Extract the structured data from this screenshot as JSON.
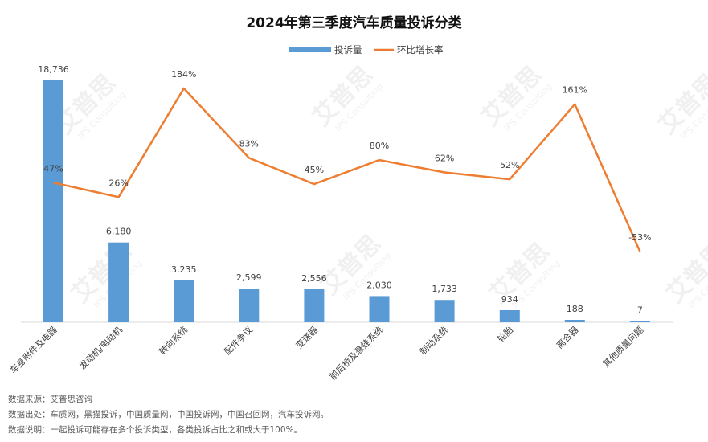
{
  "chart_data": {
    "type": "bar",
    "title": "2024年第三季度汽车质量投诉分类",
    "categories": [
      "车身附件及电器",
      "发动机/电动机",
      "转向系统",
      "配件争议",
      "变速器",
      "前后桥及悬挂系统",
      "制动系统",
      "轮胎",
      "离合器",
      "其他质量问题"
    ],
    "series": [
      {
        "name": "投诉量",
        "type": "bar",
        "color": "#5b9bd5",
        "values": [
          18736,
          6180,
          3235,
          2599,
          2556,
          2030,
          1733,
          934,
          188,
          7
        ],
        "labels": [
          "18,736",
          "6,180",
          "3,235",
          "2,599",
          "2,556",
          "2,030",
          "1,733",
          "934",
          "188",
          "7"
        ]
      },
      {
        "name": "环比增长率",
        "type": "line",
        "color": "#ed7d31",
        "values": [
          47,
          26,
          184,
          83,
          45,
          80,
          62,
          52,
          161,
          -53
        ],
        "labels": [
          "47%",
          "26%",
          "184%",
          "83%",
          "45%",
          "80%",
          "62%",
          "52%",
          "161%",
          "-53%"
        ]
      }
    ],
    "legend_position": "top-center",
    "grid": false
  },
  "notes": {
    "source": "数据来源：艾普思咨询",
    "origin": "数据出处：车质网，黑猫投诉，中国质量网，中国投诉网，中国召回网，汽车投诉网。",
    "explanation": "数据说明：一起投诉可能存在多个投诉类型，各类投诉占比之和或大于100%。"
  },
  "watermark": {
    "text": "艾普思",
    "subtext": "IPS Consulting"
  }
}
